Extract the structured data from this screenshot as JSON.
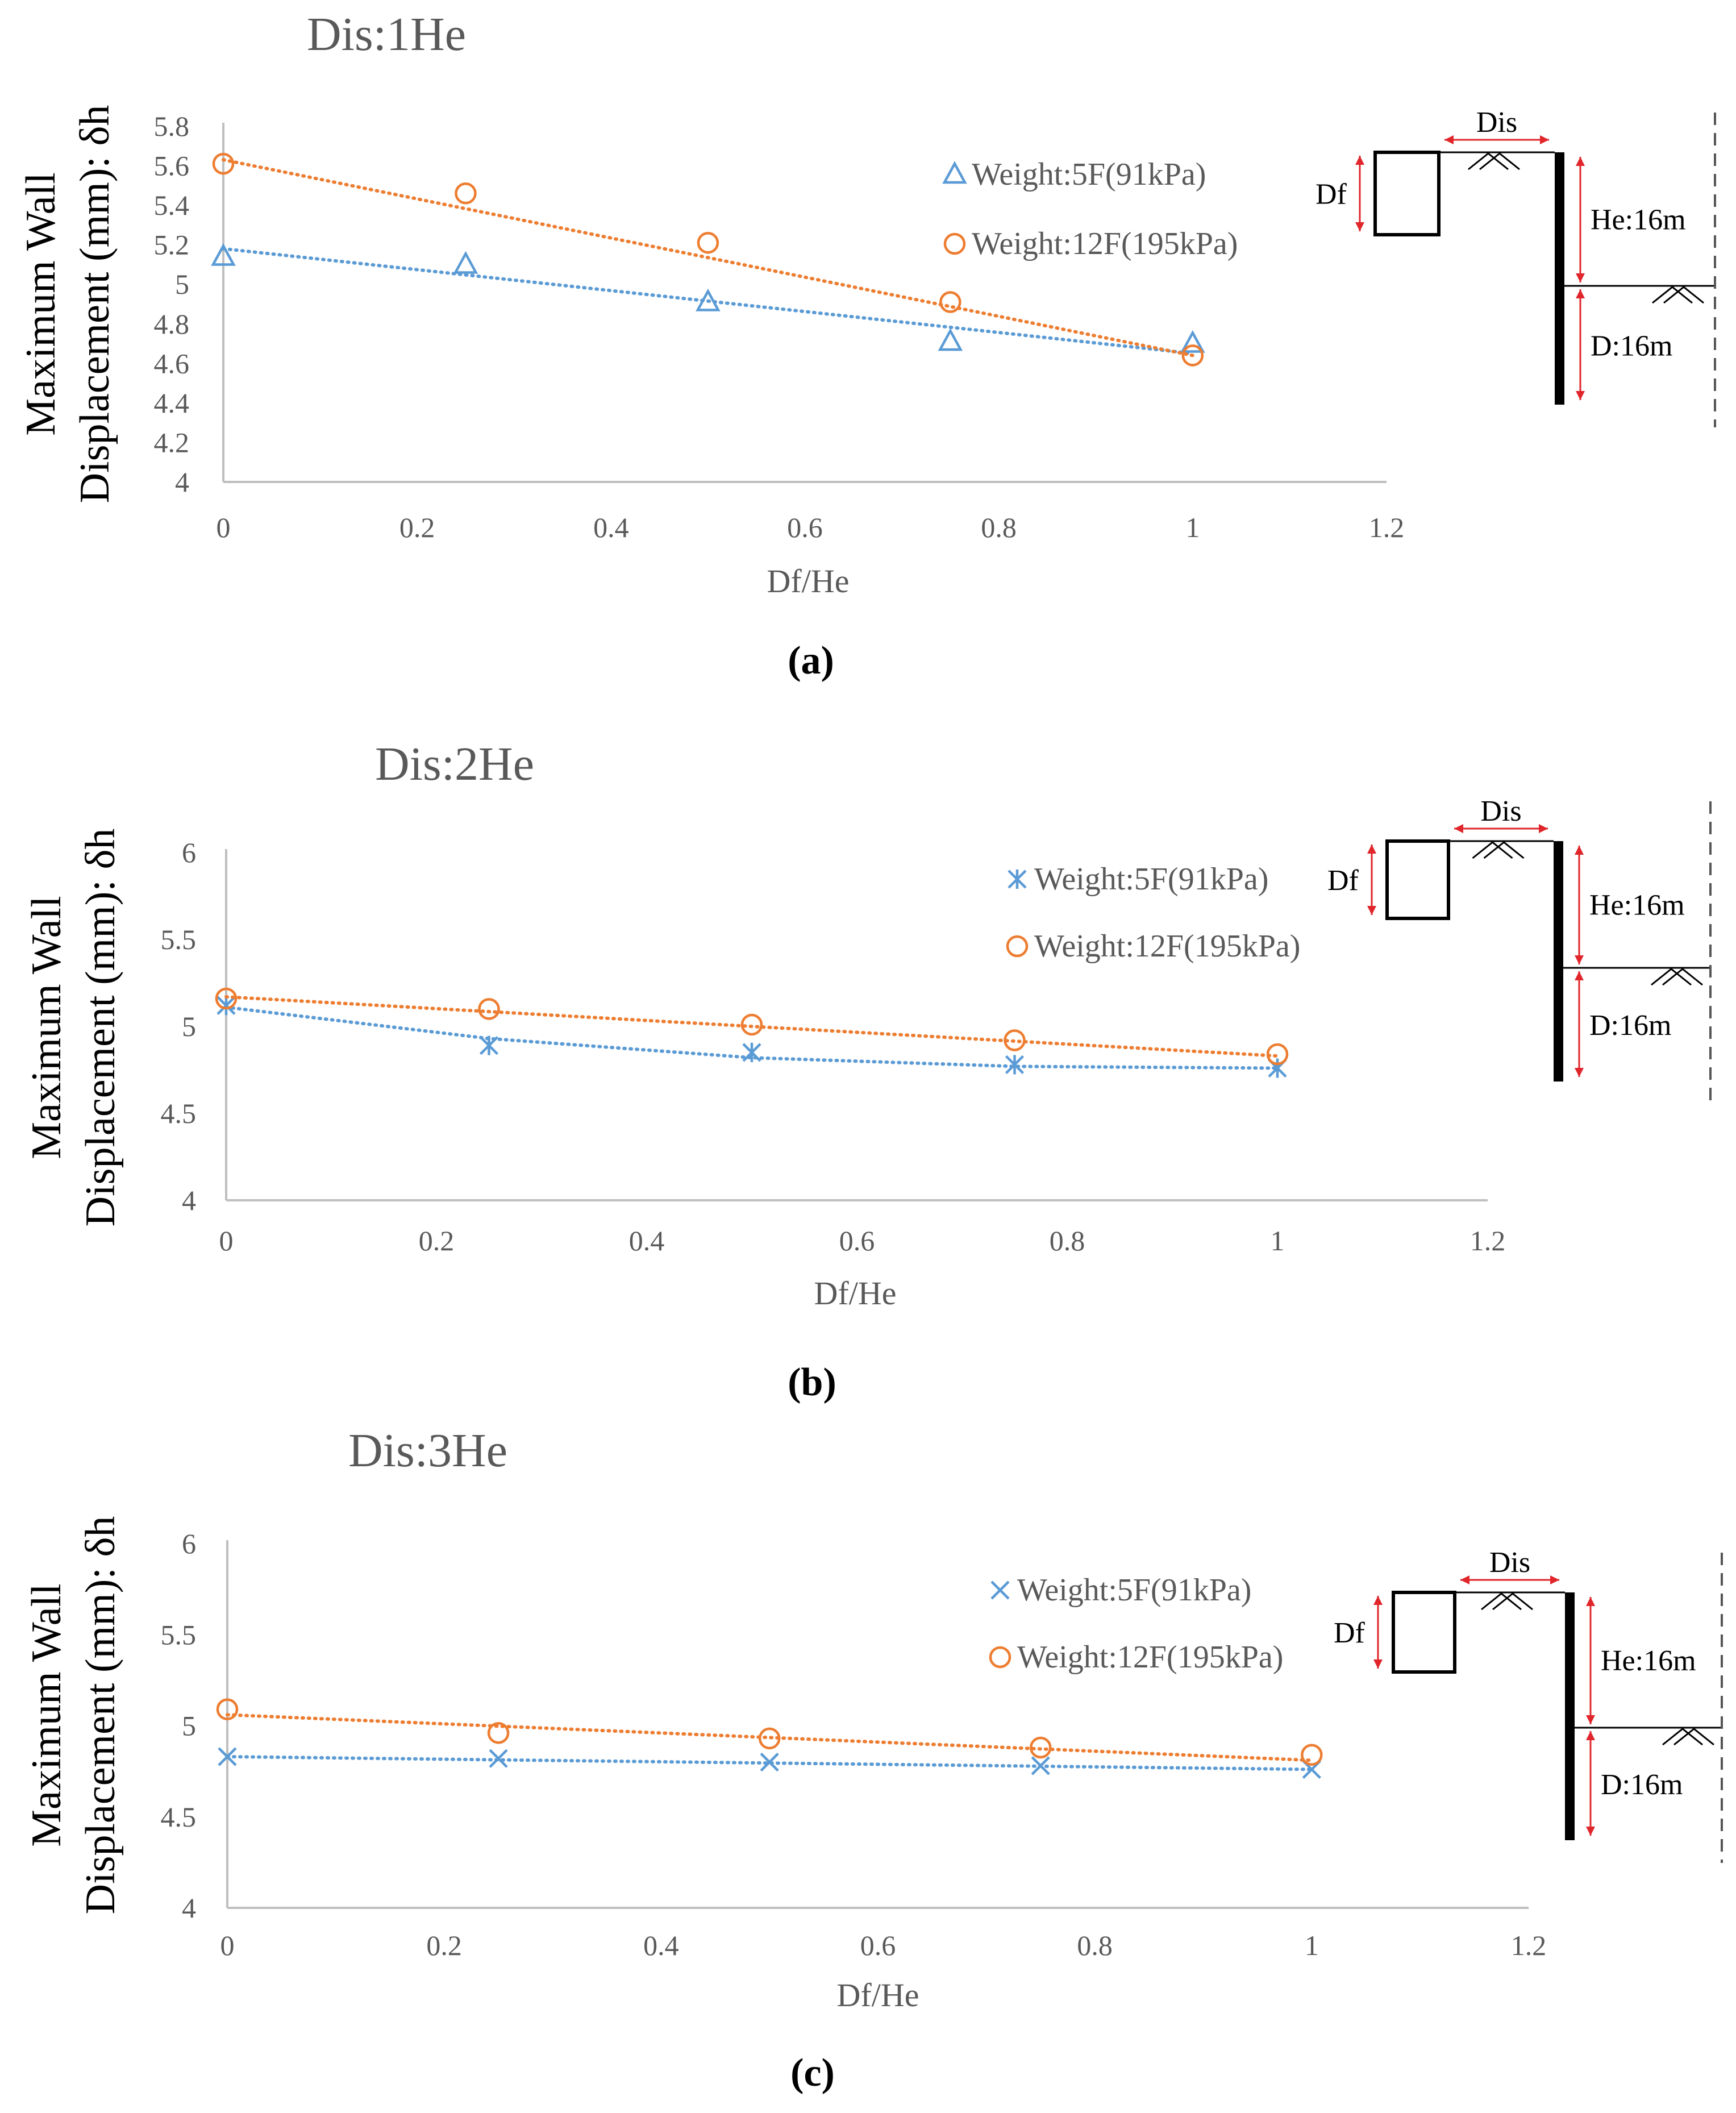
{
  "chart_data": [
    {
      "type": "line",
      "panel_label": "(a)",
      "title": "Dis:1He",
      "xlabel": "Df/He",
      "ylabel_line1": "Maximum Wall",
      "ylabel_line2": "Displacement (mm): δh",
      "xlim": [
        0,
        1.2
      ],
      "ylim": [
        4,
        5.8
      ],
      "xticks": [
        0,
        0.2,
        0.4,
        0.6,
        0.8,
        1,
        1.2
      ],
      "yticks": [
        4,
        4.2,
        4.4,
        4.6,
        4.8,
        5,
        5.2,
        5.4,
        5.6,
        5.8
      ],
      "series": [
        {
          "name": "Weight:5F(91kPa)",
          "marker": "triangle",
          "color": "#5B9BD5",
          "x": [
            0,
            0.25,
            0.5,
            0.75,
            1
          ],
          "values": [
            5.14,
            5.1,
            4.91,
            4.71,
            4.7
          ],
          "trend": [
            5.18,
            4.65
          ]
        },
        {
          "name": "Weight:12F(195kPa)",
          "marker": "circle",
          "color": "#ED7D31",
          "x": [
            0,
            0.25,
            0.5,
            0.75,
            1
          ],
          "values": [
            5.61,
            5.46,
            5.21,
            4.91,
            4.64
          ],
          "trend": [
            5.63,
            4.64
          ]
        }
      ],
      "schematic": {
        "dis": "Dis",
        "df": "Df",
        "he": "He:16m",
        "d": "D:16m"
      }
    },
    {
      "type": "line",
      "panel_label": "(b)",
      "title": "Dis:2He",
      "xlabel": "Df/He",
      "ylabel_line1": "Maximum Wall",
      "ylabel_line2": "Displacement (mm): δh",
      "xlim": [
        0,
        1.2
      ],
      "ylim": [
        4,
        6
      ],
      "xticks": [
        0,
        0.2,
        0.4,
        0.6,
        0.8,
        1,
        1.2
      ],
      "yticks": [
        4,
        4.5,
        5,
        5.5,
        6
      ],
      "series": [
        {
          "name": "Weight:5F(91kPa)",
          "marker": "asterisk",
          "color": "#5B9BD5",
          "x": [
            0,
            0.25,
            0.5,
            0.75,
            1
          ],
          "values": [
            5.12,
            4.89,
            4.85,
            4.78,
            4.76
          ],
          "trend_x": [
            0,
            0.25,
            0.5,
            0.75,
            1
          ],
          "trend_y": [
            5.11,
            4.93,
            4.82,
            4.77,
            4.76
          ]
        },
        {
          "name": "Weight:12F(195kPa)",
          "marker": "circle",
          "color": "#ED7D31",
          "x": [
            0,
            0.25,
            0.5,
            0.75,
            1
          ],
          "values": [
            5.16,
            5.1,
            5.01,
            4.92,
            4.84
          ],
          "trend": [
            5.17,
            4.83
          ]
        }
      ],
      "schematic": {
        "dis": "Dis",
        "df": "Df",
        "he": "He:16m",
        "d": "D:16m"
      }
    },
    {
      "type": "line",
      "panel_label": "(c)",
      "title": "Dis:3He",
      "xlabel": "Df/He",
      "ylabel_line1": "Maximum Wall",
      "ylabel_line2": "Displacement (mm): δh",
      "xlim": [
        0,
        1.2
      ],
      "ylim": [
        4,
        6
      ],
      "xticks": [
        0,
        0.2,
        0.4,
        0.6,
        0.8,
        1,
        1.2
      ],
      "yticks": [
        4,
        4.5,
        5,
        5.5,
        6
      ],
      "series": [
        {
          "name": "Weight:5F(91kPa)",
          "marker": "x",
          "color": "#5B9BD5",
          "x": [
            0,
            0.25,
            0.5,
            0.75,
            1
          ],
          "values": [
            4.83,
            4.82,
            4.8,
            4.78,
            4.76
          ],
          "trend": [
            4.83,
            4.76
          ]
        },
        {
          "name": "Weight:12F(195kPa)",
          "marker": "circle",
          "color": "#ED7D31",
          "x": [
            0,
            0.25,
            0.5,
            0.75,
            1
          ],
          "values": [
            5.09,
            4.96,
            4.93,
            4.88,
            4.84
          ],
          "trend": [
            5.06,
            4.81
          ]
        }
      ],
      "schematic": {
        "dis": "Dis",
        "df": "Df",
        "he": "He:16m",
        "d": "D:16m"
      }
    }
  ]
}
